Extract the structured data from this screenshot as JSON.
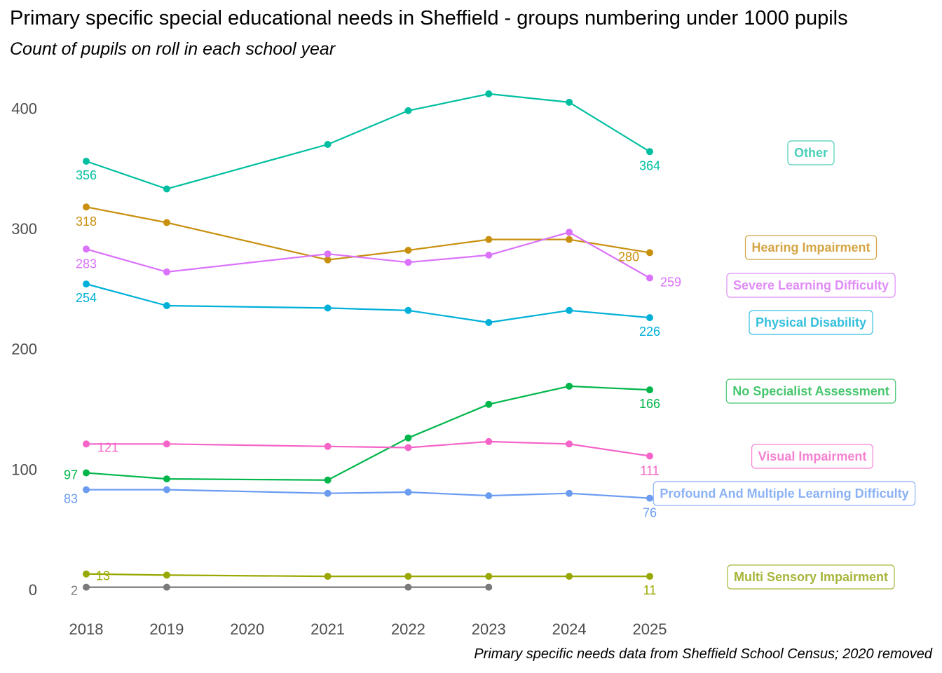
{
  "chart_data": {
    "type": "line",
    "title": "Primary specific special educational needs in Sheffield - groups numbering under 1000 pupils",
    "subtitle": "Count of pupils on roll in each school year",
    "caption": "Primary specific needs data from Sheffield School Census; 2020 removed",
    "xlabel": "",
    "ylabel": "",
    "x_ticks": [
      "2018",
      "2019",
      "2020",
      "2021",
      "2022",
      "2023",
      "2024",
      "2025"
    ],
    "y_ticks": [
      "0",
      "100",
      "200",
      "300",
      "400"
    ],
    "xlim": [
      2018,
      2025
    ],
    "ylim": [
      0,
      420
    ],
    "grid": false,
    "legend": "right, direct labels",
    "series": [
      {
        "name": "Other",
        "color": "#00BFA0",
        "points": [
          [
            2018,
            356
          ],
          [
            2019,
            333
          ],
          [
            2021,
            370
          ],
          [
            2022,
            398
          ],
          [
            2023,
            412
          ],
          [
            2024,
            405
          ],
          [
            2025,
            364
          ]
        ],
        "start_label": "356",
        "end_label": "364"
      },
      {
        "name": "Hearing Impairment",
        "color": "#C8900E",
        "points": [
          [
            2018,
            318
          ],
          [
            2019,
            305
          ],
          [
            2021,
            274
          ],
          [
            2022,
            282
          ],
          [
            2023,
            291
          ],
          [
            2024,
            291
          ],
          [
            2025,
            280
          ]
        ],
        "start_label": "318",
        "end_label": "280"
      },
      {
        "name": "Severe Learning Difficulty",
        "color": "#DB72FB",
        "points": [
          [
            2018,
            283
          ],
          [
            2019,
            264
          ],
          [
            2021,
            279
          ],
          [
            2022,
            272
          ],
          [
            2023,
            278
          ],
          [
            2024,
            297
          ],
          [
            2025,
            259
          ]
        ],
        "start_label": "283",
        "end_label": "259"
      },
      {
        "name": "Physical Disability",
        "color": "#00B0D8",
        "points": [
          [
            2018,
            254
          ],
          [
            2019,
            236
          ],
          [
            2021,
            234
          ],
          [
            2022,
            232
          ],
          [
            2023,
            222
          ],
          [
            2024,
            232
          ],
          [
            2025,
            226
          ]
        ],
        "start_label": "254",
        "end_label": "226"
      },
      {
        "name": "No Specialist Assessment",
        "color": "#00B64A",
        "points": [
          [
            2018,
            97
          ],
          [
            2019,
            92
          ],
          [
            2021,
            91
          ],
          [
            2022,
            126
          ],
          [
            2023,
            154
          ],
          [
            2024,
            169
          ],
          [
            2025,
            166
          ]
        ],
        "start_label": "97",
        "end_label": "166"
      },
      {
        "name": "Visual Impairment",
        "color": "#F564C8",
        "points": [
          [
            2018,
            121
          ],
          [
            2019,
            121
          ],
          [
            2021,
            119
          ],
          [
            2022,
            118
          ],
          [
            2023,
            123
          ],
          [
            2024,
            121
          ],
          [
            2025,
            111
          ]
        ],
        "start_label": "121",
        "end_label": "111"
      },
      {
        "name": "Profound And Multiple Learning Difficulty",
        "color": "#6B9CF2",
        "points": [
          [
            2018,
            83
          ],
          [
            2019,
            83
          ],
          [
            2021,
            80
          ],
          [
            2022,
            81
          ],
          [
            2023,
            78
          ],
          [
            2024,
            80
          ],
          [
            2025,
            76
          ]
        ],
        "start_label": "83",
        "end_label": "76"
      },
      {
        "name": "Multi Sensory Impairment",
        "color": "#99A800",
        "points": [
          [
            2018,
            13
          ],
          [
            2019,
            12
          ],
          [
            2021,
            11
          ],
          [
            2022,
            11
          ],
          [
            2023,
            11
          ],
          [
            2024,
            11
          ],
          [
            2025,
            11
          ]
        ],
        "start_label": "13",
        "end_label": "11"
      },
      {
        "name": "",
        "color": "#7A7A7A",
        "points": [
          [
            2018,
            2
          ],
          [
            2019,
            2
          ],
          [
            2022,
            2
          ],
          [
            2023,
            2
          ]
        ],
        "start_label": "2",
        "end_label": ""
      }
    ]
  }
}
